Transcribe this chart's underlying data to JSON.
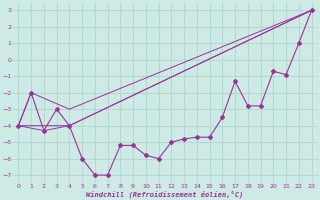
{
  "background_color": "#ceeae4",
  "grid_color": "#aed4ce",
  "line_color": "#993399",
  "xlabel": "Windchill (Refroidissement éolien,°C)",
  "xlim": [
    -0.5,
    23.5
  ],
  "ylim": [
    -7.5,
    3.5
  ],
  "xticks": [
    0,
    1,
    2,
    3,
    4,
    5,
    6,
    7,
    8,
    9,
    10,
    11,
    12,
    13,
    14,
    15,
    16,
    17,
    18,
    19,
    20,
    21,
    22,
    23
  ],
  "yticks": [
    -7,
    -6,
    -5,
    -4,
    -3,
    -2,
    -1,
    0,
    1,
    2,
    3
  ],
  "main_x": [
    0,
    1,
    2,
    3,
    4,
    5,
    6,
    7,
    8,
    9,
    10,
    11,
    12,
    13,
    14,
    15,
    16,
    17,
    18,
    19,
    20,
    21,
    22,
    23
  ],
  "main_y": [
    -4.0,
    -2.0,
    -4.3,
    -3.0,
    -4.0,
    -6.0,
    -7.0,
    -7.0,
    -5.2,
    -5.2,
    -5.8,
    -6.0,
    -5.0,
    -4.8,
    -4.7,
    -4.7,
    -3.5,
    -1.3,
    -2.8,
    -2.8,
    -0.7,
    -0.9,
    1.0,
    3.0
  ],
  "line2_x": [
    0,
    1,
    4,
    23
  ],
  "line2_y": [
    -4.0,
    -2.0,
    -3.0,
    3.0
  ],
  "line3_x": [
    0,
    4,
    23
  ],
  "line3_y": [
    -4.0,
    -4.0,
    3.0
  ],
  "line4_x": [
    0,
    2,
    4,
    23
  ],
  "line4_y": [
    -4.0,
    -4.3,
    -4.0,
    3.0
  ],
  "font_color": "#993399"
}
